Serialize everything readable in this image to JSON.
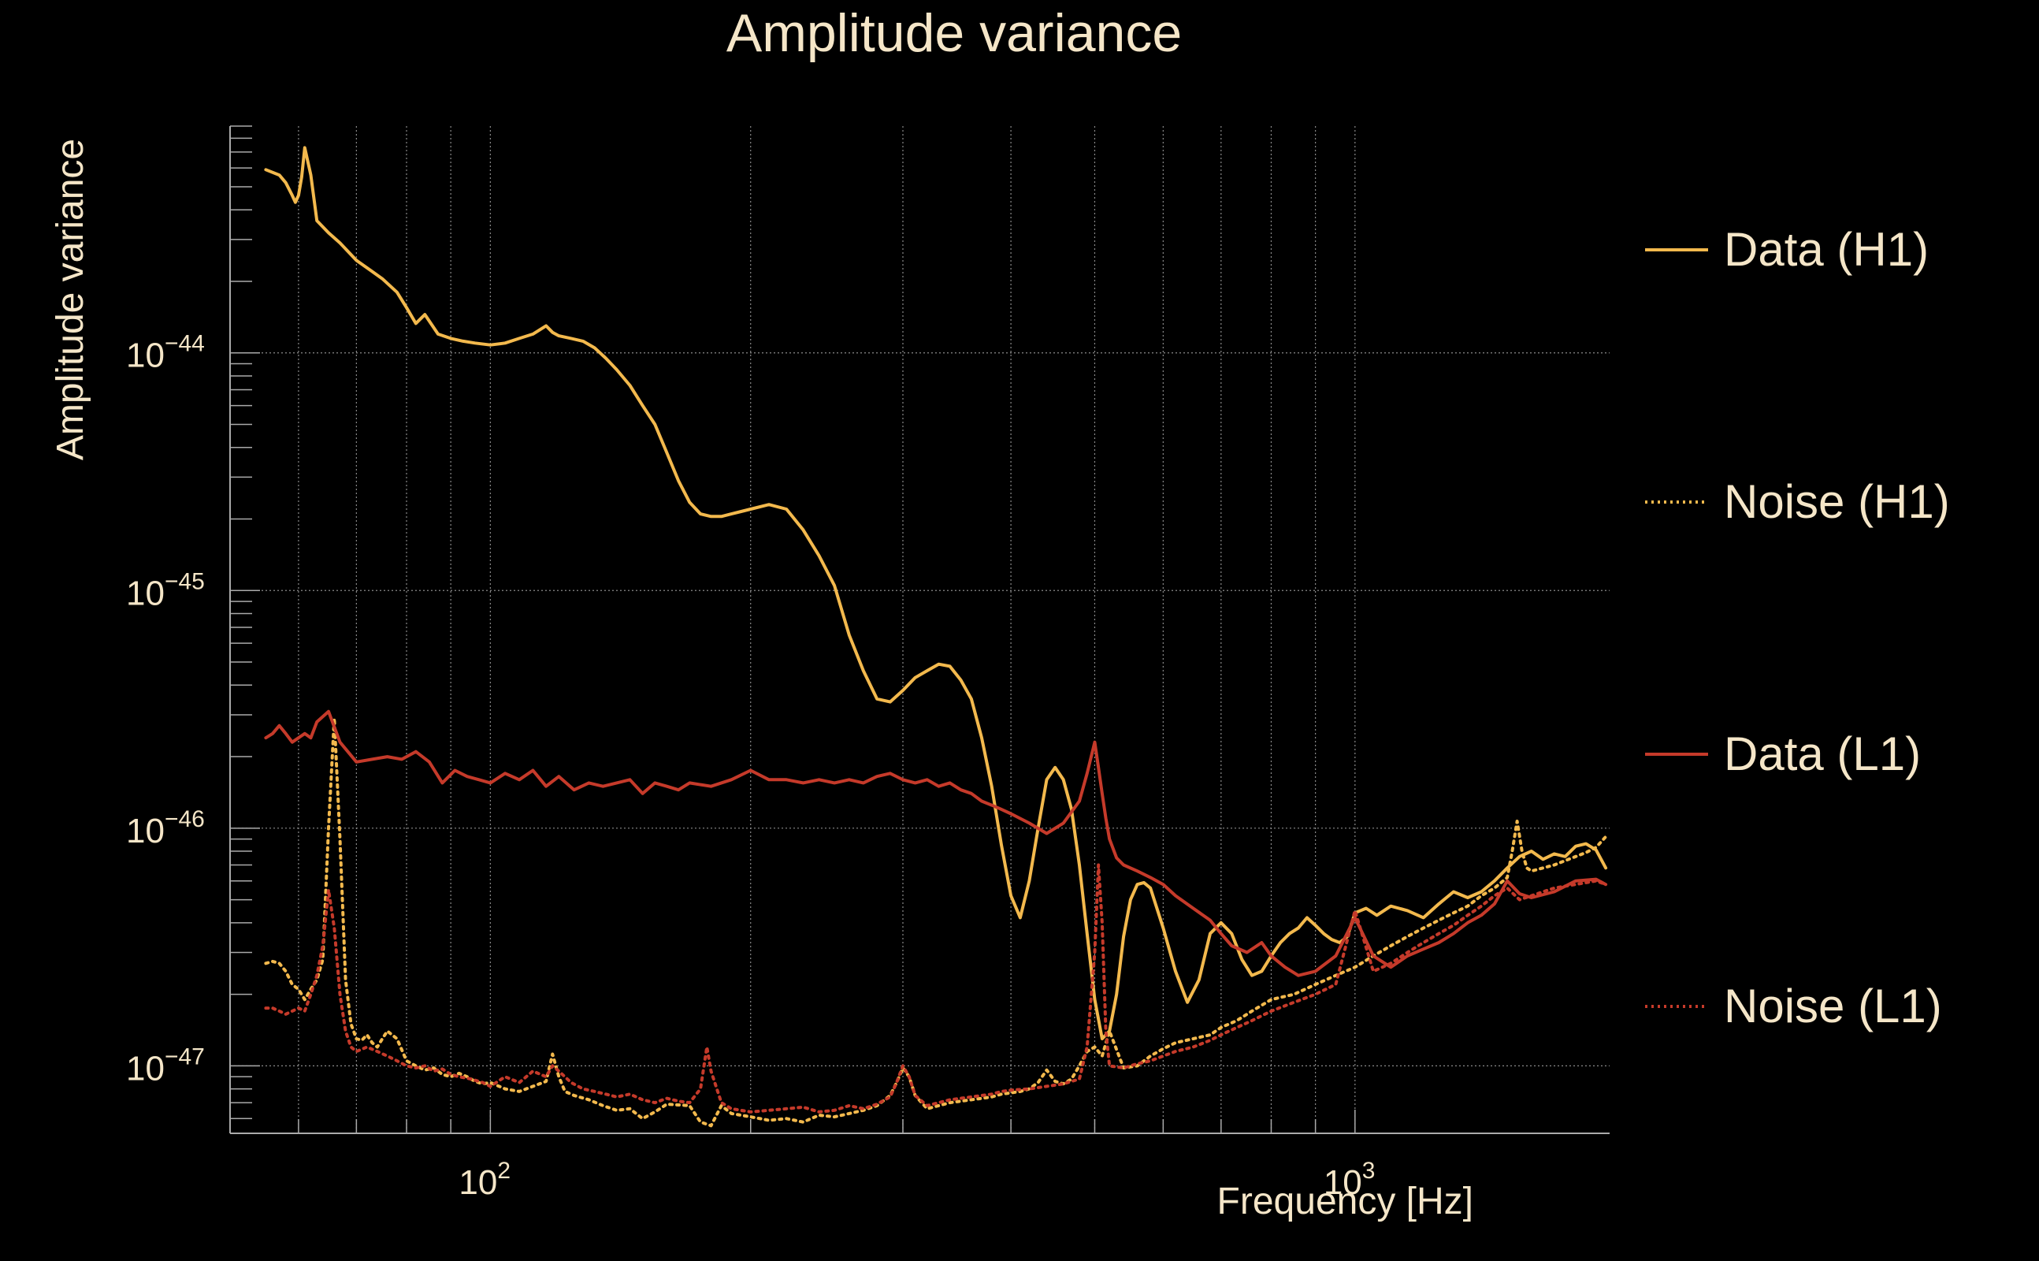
{
  "colors": {
    "background": "#000000",
    "text": "#f5e6c8",
    "grid": "#8a8a8a",
    "axis": "#aaaaaa",
    "h1": "#f3b94d",
    "l1": "#c53a2a"
  },
  "chart_data": {
    "type": "line",
    "title": "Amplitude variance",
    "xlabel": "Frequency [Hz]",
    "ylabel": "Amplitude variance",
    "x_scale": "log",
    "y_scale": "log",
    "xlim": [
      50,
      1970
    ],
    "ylim": [
      5.2e-48,
      9e-44
    ],
    "grid": true,
    "legend_position": "right",
    "x_ticks": [
      {
        "value": 100,
        "base": "10",
        "exp": "2"
      },
      {
        "value": 1000,
        "base": "10",
        "exp": "3"
      }
    ],
    "y_ticks": [
      {
        "value": 1e-44,
        "base": "10",
        "exp": "−44"
      },
      {
        "value": 1e-45,
        "base": "10",
        "exp": "−45"
      },
      {
        "value": 1e-46,
        "base": "10",
        "exp": "−46"
      },
      {
        "value": 1e-47,
        "base": "10",
        "exp": "−47"
      }
    ],
    "series": [
      {
        "name": "Data (H1)",
        "style": "solid",
        "color": "#f3b94d",
        "x": [
          55,
          57,
          58,
          59,
          59.5,
          60,
          60.5,
          61,
          62,
          63,
          65,
          67,
          70,
          73,
          75,
          78,
          80,
          82,
          84,
          87,
          90,
          93,
          96,
          100,
          104,
          108,
          112,
          116,
          118,
          120,
          124,
          128,
          132,
          136,
          140,
          145,
          150,
          155,
          160,
          165,
          170,
          175,
          180,
          185,
          190,
          195,
          200,
          210,
          220,
          230,
          240,
          250,
          260,
          270,
          280,
          290,
          300,
          310,
          320,
          330,
          340,
          350,
          360,
          370,
          380,
          390,
          400,
          410,
          420,
          430,
          440,
          450,
          460,
          470,
          480,
          490,
          500,
          510,
          520,
          530,
          540,
          550,
          560,
          570,
          580,
          590,
          600,
          620,
          640,
          660,
          680,
          700,
          720,
          740,
          760,
          780,
          800,
          820,
          840,
          860,
          880,
          900,
          920,
          940,
          960,
          980,
          1000,
          1030,
          1060,
          1100,
          1150,
          1200,
          1250,
          1300,
          1350,
          1400,
          1450,
          1500,
          1550,
          1600,
          1650,
          1700,
          1750,
          1800,
          1850,
          1900,
          1950
        ],
        "y": [
          5.9e-44,
          5.6e-44,
          5.2e-44,
          4.6e-44,
          4.3e-44,
          4.6e-44,
          5.5e-44,
          7.3e-44,
          5.6e-44,
          3.6e-44,
          3.2e-44,
          2.9e-44,
          2.45e-44,
          2.2e-44,
          2.05e-44,
          1.8e-44,
          1.55e-44,
          1.33e-44,
          1.45e-44,
          1.2e-44,
          1.15e-44,
          1.12e-44,
          1.1e-44,
          1.08e-44,
          1.1e-44,
          1.15e-44,
          1.2e-44,
          1.3e-44,
          1.22e-44,
          1.18e-44,
          1.15e-44,
          1.12e-44,
          1.05e-44,
          9.5e-45,
          8.5e-45,
          7.3e-45,
          6e-45,
          5e-45,
          3.8e-45,
          2.9e-45,
          2.35e-45,
          2.1e-45,
          2.05e-45,
          2.05e-45,
          2.1e-45,
          2.15e-45,
          2.2e-45,
          2.3e-45,
          2.2e-45,
          1.8e-45,
          1.4e-45,
          1.05e-45,
          6.5e-46,
          4.6e-46,
          3.5e-46,
          3.4e-46,
          3.8e-46,
          4.3e-46,
          4.6e-46,
          4.9e-46,
          4.8e-46,
          4.2e-46,
          3.5e-46,
          2.4e-46,
          1.5e-46,
          8.5e-47,
          5.2e-47,
          4.2e-47,
          6e-47,
          1e-46,
          1.6e-46,
          1.8e-46,
          1.6e-46,
          1.2e-46,
          7e-47,
          3.6e-47,
          1.9e-47,
          1.3e-47,
          1.4e-47,
          2e-47,
          3.5e-47,
          5e-47,
          5.8e-47,
          5.9e-47,
          5.6e-47,
          4.6e-47,
          3.8e-47,
          2.5e-47,
          1.85e-47,
          2.3e-47,
          3.6e-47,
          4e-47,
          3.6e-47,
          2.8e-47,
          2.4e-47,
          2.5e-47,
          2.9e-47,
          3.3e-47,
          3.6e-47,
          3.8e-47,
          4.2e-47,
          3.9e-47,
          3.6e-47,
          3.4e-47,
          3.3e-47,
          3.5e-47,
          4.4e-47,
          4.6e-47,
          4.3e-47,
          4.7e-47,
          4.5e-47,
          4.2e-47,
          4.8e-47,
          5.4e-47,
          5.1e-47,
          5.4e-47,
          6e-47,
          6.8e-47,
          7.6e-47,
          8e-47,
          7.4e-47,
          7.8e-47,
          7.6e-47,
          8.4e-47,
          8.6e-47,
          8.1e-47,
          6.8e-47
        ]
      },
      {
        "name": "Noise (H1)",
        "style": "dotted",
        "color": "#f3b94d",
        "x": [
          55,
          56,
          57,
          58,
          59,
          60,
          61,
          62,
          63,
          64,
          65,
          66,
          67,
          68,
          69,
          70,
          71,
          72,
          73,
          74,
          75,
          76,
          78,
          80,
          82,
          84,
          86,
          88,
          90,
          92,
          94,
          96,
          98,
          100,
          104,
          108,
          112,
          116,
          118,
          120,
          122,
          125,
          130,
          135,
          140,
          145,
          150,
          155,
          160,
          170,
          175,
          180,
          185,
          190,
          200,
          210,
          220,
          230,
          240,
          250,
          260,
          270,
          280,
          290,
          295,
          300,
          305,
          310,
          320,
          330,
          340,
          350,
          360,
          370,
          380,
          390,
          400,
          410,
          420,
          430,
          440,
          450,
          460,
          470,
          480,
          490,
          500,
          510,
          520,
          540,
          560,
          580,
          600,
          620,
          650,
          680,
          700,
          730,
          760,
          800,
          850,
          900,
          950,
          1000,
          1050,
          1100,
          1150,
          1200,
          1250,
          1300,
          1350,
          1400,
          1450,
          1500,
          1520,
          1540,
          1560,
          1580,
          1600,
          1650,
          1700,
          1750,
          1800,
          1850,
          1900,
          1950
        ],
        "y": [
          2.7e-47,
          2.75e-47,
          2.7e-47,
          2.5e-47,
          2.2e-47,
          2.1e-47,
          1.9e-47,
          2.1e-47,
          2.3e-47,
          2.8e-47,
          1e-46,
          2.9e-46,
          9e-47,
          2.3e-47,
          1.5e-47,
          1.3e-47,
          1.28e-47,
          1.35e-47,
          1.25e-47,
          1.2e-47,
          1.3e-47,
          1.4e-47,
          1.3e-47,
          1.05e-47,
          1e-47,
          9.6e-48,
          9.8e-48,
          9.2e-48,
          9e-48,
          9.3e-48,
          9e-48,
          8.6e-48,
          8.4e-48,
          8.5e-48,
          8e-48,
          7.8e-48,
          8.2e-48,
          8.6e-48,
          1.12e-47,
          9e-48,
          7.8e-48,
          7.5e-48,
          7.2e-48,
          6.8e-48,
          6.5e-48,
          6.6e-48,
          6e-48,
          6.4e-48,
          6.9e-48,
          6.8e-48,
          5.8e-48,
          5.6e-48,
          6.8e-48,
          6.3e-48,
          6.1e-48,
          5.9e-48,
          6e-48,
          5.8e-48,
          6.2e-48,
          6.1e-48,
          6.3e-48,
          6.5e-48,
          6.8e-48,
          7.5e-48,
          8.5e-48,
          9.8e-48,
          9e-48,
          7.5e-48,
          6.6e-48,
          6.8e-48,
          7e-48,
          7.1e-48,
          7.2e-48,
          7.3e-48,
          7.4e-48,
          7.6e-48,
          7.7e-48,
          7.8e-48,
          8e-48,
          8.5e-48,
          9.6e-48,
          8.6e-48,
          8.4e-48,
          8.8e-48,
          1e-47,
          1.15e-47,
          1.2e-47,
          1.1e-47,
          1.4e-47,
          9.8e-48,
          1e-47,
          1.1e-47,
          1.18e-47,
          1.25e-47,
          1.3e-47,
          1.35e-47,
          1.45e-47,
          1.55e-47,
          1.7e-47,
          1.9e-47,
          2e-47,
          2.2e-47,
          2.4e-47,
          2.6e-47,
          2.9e-47,
          3.2e-47,
          3.5e-47,
          3.8e-47,
          4.1e-47,
          4.4e-47,
          4.7e-47,
          5.2e-47,
          5.6e-47,
          6.2e-47,
          8e-47,
          1.07e-46,
          8e-47,
          6.8e-47,
          6.6e-47,
          6.8e-47,
          7e-47,
          7.3e-47,
          7.6e-47,
          7.9e-47,
          8.3e-47,
          9.2e-47
        ]
      },
      {
        "name": "Data (L1)",
        "style": "solid",
        "color": "#c53a2a",
        "x": [
          55,
          56,
          57,
          58,
          59,
          60,
          61,
          62,
          63,
          65,
          67,
          70,
          73,
          76,
          79,
          82,
          85,
          88,
          91,
          94,
          97,
          100,
          104,
          108,
          112,
          116,
          120,
          125,
          130,
          135,
          140,
          145,
          150,
          155,
          160,
          165,
          170,
          180,
          190,
          200,
          210,
          220,
          230,
          240,
          250,
          260,
          270,
          280,
          290,
          300,
          310,
          320,
          330,
          340,
          350,
          360,
          370,
          380,
          390,
          400,
          420,
          440,
          460,
          480,
          490,
          500,
          505,
          510,
          515,
          520,
          530,
          540,
          560,
          580,
          600,
          620,
          650,
          680,
          700,
          720,
          750,
          780,
          800,
          830,
          860,
          900,
          950,
          1000,
          1050,
          1100,
          1150,
          1200,
          1250,
          1300,
          1350,
          1400,
          1450,
          1500,
          1550,
          1600,
          1700,
          1800,
          1900,
          1950
        ],
        "y": [
          2.4e-46,
          2.5e-46,
          2.7e-46,
          2.5e-46,
          2.3e-46,
          2.4e-46,
          2.5e-46,
          2.4e-46,
          2.8e-46,
          3.1e-46,
          2.3e-46,
          1.9e-46,
          1.95e-46,
          2e-46,
          1.95e-46,
          2.1e-46,
          1.9e-46,
          1.55e-46,
          1.75e-46,
          1.65e-46,
          1.6e-46,
          1.55e-46,
          1.7e-46,
          1.6e-46,
          1.75e-46,
          1.5e-46,
          1.65e-46,
          1.45e-46,
          1.55e-46,
          1.5e-46,
          1.55e-46,
          1.6e-46,
          1.4e-46,
          1.55e-46,
          1.5e-46,
          1.45e-46,
          1.55e-46,
          1.5e-46,
          1.6e-46,
          1.75e-46,
          1.6e-46,
          1.6e-46,
          1.55e-46,
          1.6e-46,
          1.55e-46,
          1.6e-46,
          1.55e-46,
          1.65e-46,
          1.7e-46,
          1.6e-46,
          1.55e-46,
          1.6e-46,
          1.5e-46,
          1.55e-46,
          1.45e-46,
          1.4e-46,
          1.3e-46,
          1.25e-46,
          1.2e-46,
          1.15e-46,
          1.05e-46,
          9.5e-47,
          1.05e-46,
          1.3e-46,
          1.7e-46,
          2.3e-46,
          1.8e-46,
          1.4e-46,
          1.1e-46,
          9e-47,
          7.5e-47,
          7e-47,
          6.6e-47,
          6.2e-47,
          5.8e-47,
          5.2e-47,
          4.6e-47,
          4.1e-47,
          3.6e-47,
          3.2e-47,
          3e-47,
          3.3e-47,
          2.9e-47,
          2.6e-47,
          2.4e-47,
          2.5e-47,
          2.9e-47,
          4.2e-47,
          2.9e-47,
          2.6e-47,
          2.9e-47,
          3.1e-47,
          3.3e-47,
          3.6e-47,
          4e-47,
          4.3e-47,
          4.8e-47,
          6e-47,
          5.3e-47,
          5.1e-47,
          5.4e-47,
          6e-47,
          6.1e-47,
          5.8e-47
        ]
      },
      {
        "name": "Noise (L1)",
        "style": "dotted",
        "color": "#c53a2a",
        "x": [
          55,
          56,
          57,
          58,
          59,
          60,
          61,
          62,
          63,
          64,
          65,
          66,
          67,
          68,
          69,
          70,
          72,
          74,
          76,
          78,
          80,
          82,
          84,
          86,
          88,
          90,
          92,
          95,
          98,
          100,
          104,
          108,
          112,
          116,
          118,
          120,
          124,
          128,
          132,
          136,
          140,
          145,
          150,
          155,
          160,
          165,
          170,
          175,
          178,
          180,
          185,
          190,
          200,
          210,
          220,
          230,
          240,
          250,
          260,
          270,
          280,
          290,
          295,
          300,
          305,
          310,
          320,
          330,
          340,
          350,
          360,
          370,
          380,
          390,
          400,
          420,
          440,
          460,
          480,
          490,
          500,
          505,
          510,
          515,
          520,
          540,
          560,
          580,
          600,
          620,
          650,
          680,
          700,
          730,
          760,
          800,
          850,
          900,
          950,
          1000,
          1050,
          1100,
          1150,
          1200,
          1250,
          1300,
          1350,
          1400,
          1450,
          1500,
          1550,
          1600,
          1650,
          1700,
          1750,
          1800,
          1850,
          1900,
          1950
        ],
        "y": [
          1.75e-47,
          1.75e-47,
          1.7e-47,
          1.65e-47,
          1.7e-47,
          1.75e-47,
          1.7e-47,
          2e-47,
          2.4e-47,
          3.2e-47,
          5.5e-47,
          3.8e-47,
          2e-47,
          1.4e-47,
          1.2e-47,
          1.15e-47,
          1.2e-47,
          1.15e-47,
          1.1e-47,
          1.05e-47,
          1e-47,
          9.8e-48,
          1e-47,
          9.5e-48,
          9.7e-48,
          9.2e-48,
          9e-48,
          8.8e-48,
          8.5e-48,
          8.2e-48,
          9e-48,
          8.5e-48,
          9.5e-48,
          9e-48,
          1e-47,
          9.5e-48,
          8.5e-48,
          8e-48,
          7.8e-48,
          7.6e-48,
          7.4e-48,
          7.6e-48,
          7.2e-48,
          7e-48,
          7.3e-48,
          7.1e-48,
          7e-48,
          8e-48,
          1.2e-47,
          9.5e-48,
          7e-48,
          6.6e-48,
          6.4e-48,
          6.5e-48,
          6.6e-48,
          6.7e-48,
          6.4e-48,
          6.5e-48,
          6.8e-48,
          6.6e-48,
          6.9e-48,
          7.4e-48,
          8.5e-48,
          1e-47,
          9e-48,
          7.5e-48,
          6.8e-48,
          7e-48,
          7.2e-48,
          7.3e-48,
          7.4e-48,
          7.5e-48,
          7.6e-48,
          7.8e-48,
          7.9e-48,
          8e-48,
          8.2e-48,
          8.4e-48,
          8.8e-48,
          1.2e-47,
          3e-47,
          7e-47,
          4e-47,
          1.4e-47,
          1e-47,
          9.8e-48,
          1.02e-47,
          1.05e-47,
          1.1e-47,
          1.15e-47,
          1.2e-47,
          1.28e-47,
          1.35e-47,
          1.45e-47,
          1.55e-47,
          1.7e-47,
          1.85e-47,
          2e-47,
          2.2e-47,
          4.5e-47,
          2.5e-47,
          2.7e-47,
          3e-47,
          3.3e-47,
          3.6e-47,
          3.9e-47,
          4.3e-47,
          4.7e-47,
          5.2e-47,
          5.6e-47,
          5e-47,
          5.2e-47,
          5.4e-47,
          5.6e-47,
          5.7e-47,
          5.8e-47,
          5.9e-47,
          6e-47,
          5.8e-47
        ]
      }
    ]
  }
}
